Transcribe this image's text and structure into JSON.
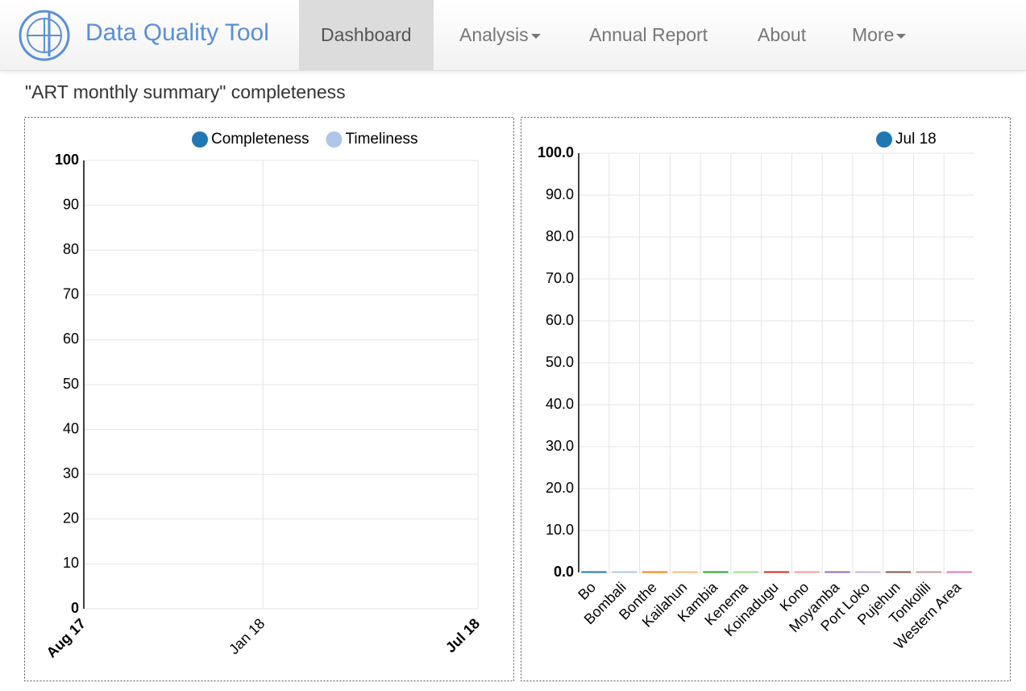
{
  "nav": {
    "brand": "Data Quality Tool",
    "items": [
      "Dashboard",
      "Analysis",
      "Annual Report",
      "About",
      "More"
    ]
  },
  "page_title": "\"ART monthly summary\" completeness",
  "chart_data": [
    {
      "type": "line",
      "categories": [
        "Aug 17",
        null,
        null,
        null,
        null,
        "Jan 18",
        null,
        null,
        null,
        null,
        null,
        "Jul 18"
      ],
      "series": [
        {
          "name": "Completeness",
          "color": "#1f77b4",
          "values": [
            null,
            null,
            null,
            null,
            null,
            null,
            null,
            null,
            null,
            null,
            null,
            null
          ]
        },
        {
          "name": "Timeliness",
          "color": "#aec7e8",
          "values": [
            null,
            null,
            null,
            null,
            null,
            null,
            null,
            null,
            null,
            null,
            null,
            null
          ]
        }
      ],
      "ylim": [
        0,
        100
      ],
      "yticks": [
        0,
        10,
        20,
        30,
        40,
        50,
        60,
        70,
        80,
        90,
        100
      ],
      "grid": true
    },
    {
      "type": "bar",
      "categories": [
        "Bo",
        "Bombali",
        "Bonthe",
        "Kailahun",
        "Kambia",
        "Kenema",
        "Koinadugu",
        "Kono",
        "Moyamba",
        "Port Loko",
        "Pujehun",
        "Tonkolili",
        "Western Area"
      ],
      "series": [
        {
          "name": "Jul 18",
          "color": "#1f77b4",
          "values": [
            0,
            0,
            0,
            0,
            0,
            0,
            0,
            0,
            0,
            0,
            0,
            0,
            0
          ],
          "colors": [
            "#1f77b4",
            "#aec7e8",
            "#ff7f0e",
            "#ffbb78",
            "#2ca02c",
            "#98df8a",
            "#d62728",
            "#ff9896",
            "#9467bd",
            "#c5b0d5",
            "#8c564b",
            "#c49c94",
            "#e377c2"
          ]
        }
      ],
      "ylim": [
        0,
        100
      ],
      "yticks": [
        {
          "value": 0,
          "label": "0.0"
        },
        {
          "value": 10,
          "label": "10.0"
        },
        {
          "value": 20,
          "label": "20.0"
        },
        {
          "value": 30,
          "label": "30.0"
        },
        {
          "value": 40,
          "label": "40.0"
        },
        {
          "value": 50,
          "label": "50.0"
        },
        {
          "value": 60,
          "label": "60.0"
        },
        {
          "value": 70,
          "label": "70.0"
        },
        {
          "value": 80,
          "label": "80.0"
        },
        {
          "value": 90,
          "label": "90.0"
        },
        {
          "value": 100,
          "label": "100.0"
        }
      ],
      "grid": true
    }
  ]
}
